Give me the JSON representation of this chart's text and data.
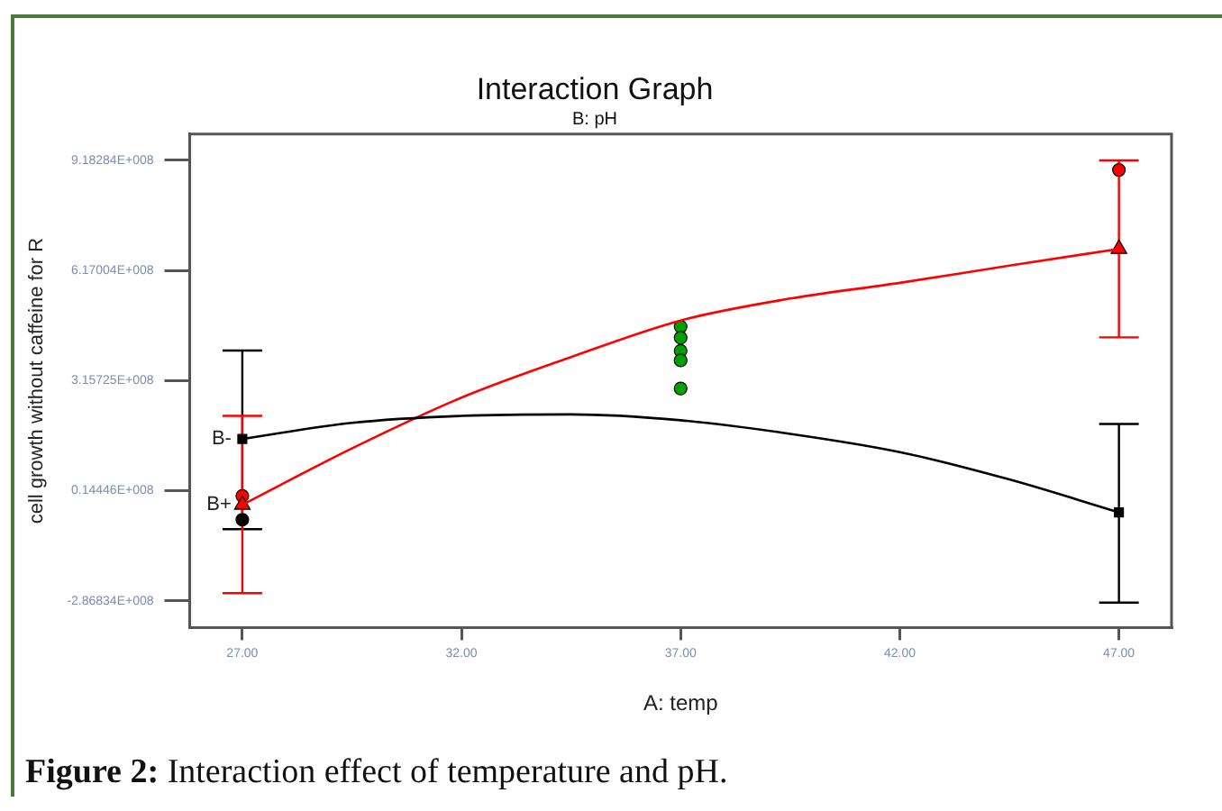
{
  "chart_data": {
    "type": "line",
    "title": "Interaction Graph",
    "subtitle": "B: pH",
    "xlabel": "A: temp",
    "ylabel": "cell growth without caffeine for R",
    "xlim": [
      25.8,
      48.2
    ],
    "xticks": [
      {
        "value": 27,
        "label": "27.00"
      },
      {
        "value": 32,
        "label": "32.00"
      },
      {
        "value": 37,
        "label": "37.00"
      },
      {
        "value": 42,
        "label": "42.00"
      },
      {
        "value": 47,
        "label": "47.00"
      }
    ],
    "ylim": [
      -360000000.0,
      990000000.0
    ],
    "yticks": [
      {
        "value": -286834000.0,
        "label": "-2.86834E+008"
      },
      {
        "value": 14446000.0,
        "label": "0.14446E+008"
      },
      {
        "value": 315725000.0,
        "label": "3.15725E+008"
      },
      {
        "value": 617004000.0,
        "label": "6.17004E+008"
      },
      {
        "value": 918284000.0,
        "label": "9.18284E+008"
      }
    ],
    "grid": false,
    "legend": false,
    "series": [
      {
        "name": "B-",
        "type": "line",
        "color": "#000000",
        "marker": "none",
        "x": [
          27,
          29.5,
          32,
          34.5,
          37,
          39.5,
          42,
          44.5,
          47
        ],
        "values": [
          156000000.0,
          200000000.0,
          219000000.0,
          223000000.0,
          207000000.0,
          170000000.0,
          120000000.0,
          45000000.0,
          -45000000.0
        ]
      },
      {
        "name": "B+",
        "type": "line",
        "color": "#ff0000",
        "marker": "none",
        "x": [
          27,
          29.5,
          32,
          34.5,
          37,
          39.5,
          42,
          44.5,
          47
        ],
        "values": [
          -24000000.0,
          130000000.0,
          269000000.0,
          380000000.0,
          480000000.0,
          540000000.0,
          583000000.0,
          630000000.0,
          676000000.0
        ]
      },
      {
        "type": "scatter",
        "color": "#000000",
        "marker": "square",
        "x": [
          27,
          47
        ],
        "values": [
          156000000.0,
          -45000000.0
        ],
        "errors": [
          [
            -91000000.0,
            398000000.0
          ],
          [
            -292000000.0,
            197000000.0
          ]
        ]
      },
      {
        "type": "scatter",
        "color": "#ff0000",
        "marker": "triangle",
        "x": [
          27,
          47
        ],
        "values": [
          -24000000.0,
          676000000.0
        ],
        "errors": [
          [
            -266000000.0,
            219000000.0
          ],
          [
            434000000.0,
            918000000.0
          ]
        ]
      },
      {
        "type": "scatter",
        "color": "#000000",
        "marker": "circle",
        "x": [
          27
        ],
        "values": [
          -65000000.0
        ]
      },
      {
        "type": "scatter",
        "color": "#ff0000",
        "marker": "circle",
        "x": [
          27,
          47
        ],
        "values": [
          0.0,
          892000000.0
        ]
      },
      {
        "type": "scatter",
        "color": "#00a000",
        "marker": "circle",
        "x": [
          37,
          37,
          37,
          37,
          37
        ],
        "values": [
          463000000.0,
          433000000.0,
          397000000.0,
          371000000.0,
          294000000.0
        ]
      }
    ],
    "annotations": [
      "Figure 2: Interaction effect of temperature and pH."
    ]
  }
}
